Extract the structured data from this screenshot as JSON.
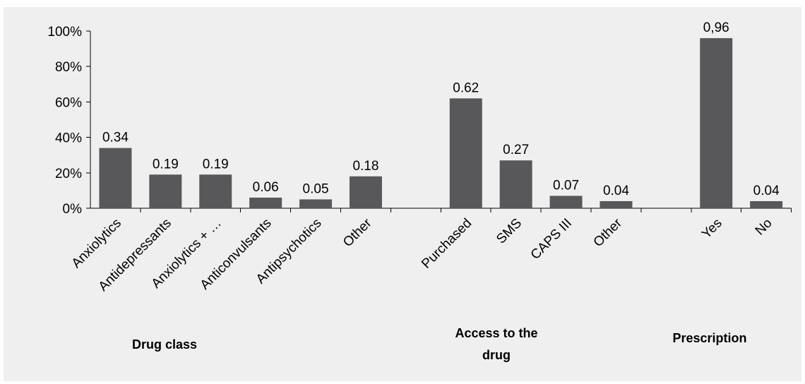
{
  "chart_data": {
    "type": "bar",
    "title": "",
    "xlabel": "",
    "ylabel": "",
    "ylim": [
      0,
      1
    ],
    "y_tick_values": [
      0,
      0.2,
      0.4,
      0.6,
      0.8,
      1.0
    ],
    "y_tick_labels": [
      "0%",
      "20%",
      "40%",
      "60%",
      "80%",
      "100%"
    ],
    "grid": false,
    "legend": "none",
    "bar_color": "#58585a",
    "background_color": "#efefef",
    "categories": [
      "Anxiolytics",
      "Antidepressants",
      "Anxiolytics + …",
      "Anticonvulsants",
      "Antipsychotics",
      "Other",
      "",
      "Purchased",
      "SMS",
      "CAPS III",
      "Other",
      "",
      "Yes",
      "No"
    ],
    "values": [
      0.34,
      0.19,
      0.19,
      0.06,
      0.05,
      0.18,
      null,
      0.62,
      0.27,
      0.07,
      0.04,
      null,
      0.96,
      0.04
    ],
    "value_labels": [
      "0.34",
      "0.19",
      "0.19",
      "0.06",
      "0.05",
      "0.18",
      "",
      "0.62",
      "0.27",
      "0.07",
      "0.04",
      "",
      "0,96",
      "0.04"
    ],
    "groups": [
      {
        "name": "Drug class",
        "category_range": [
          0,
          5
        ]
      },
      {
        "name": "Access to the drug",
        "category_range": [
          7,
          10
        ]
      },
      {
        "name": "Prescription",
        "category_range": [
          12,
          13
        ]
      }
    ]
  }
}
